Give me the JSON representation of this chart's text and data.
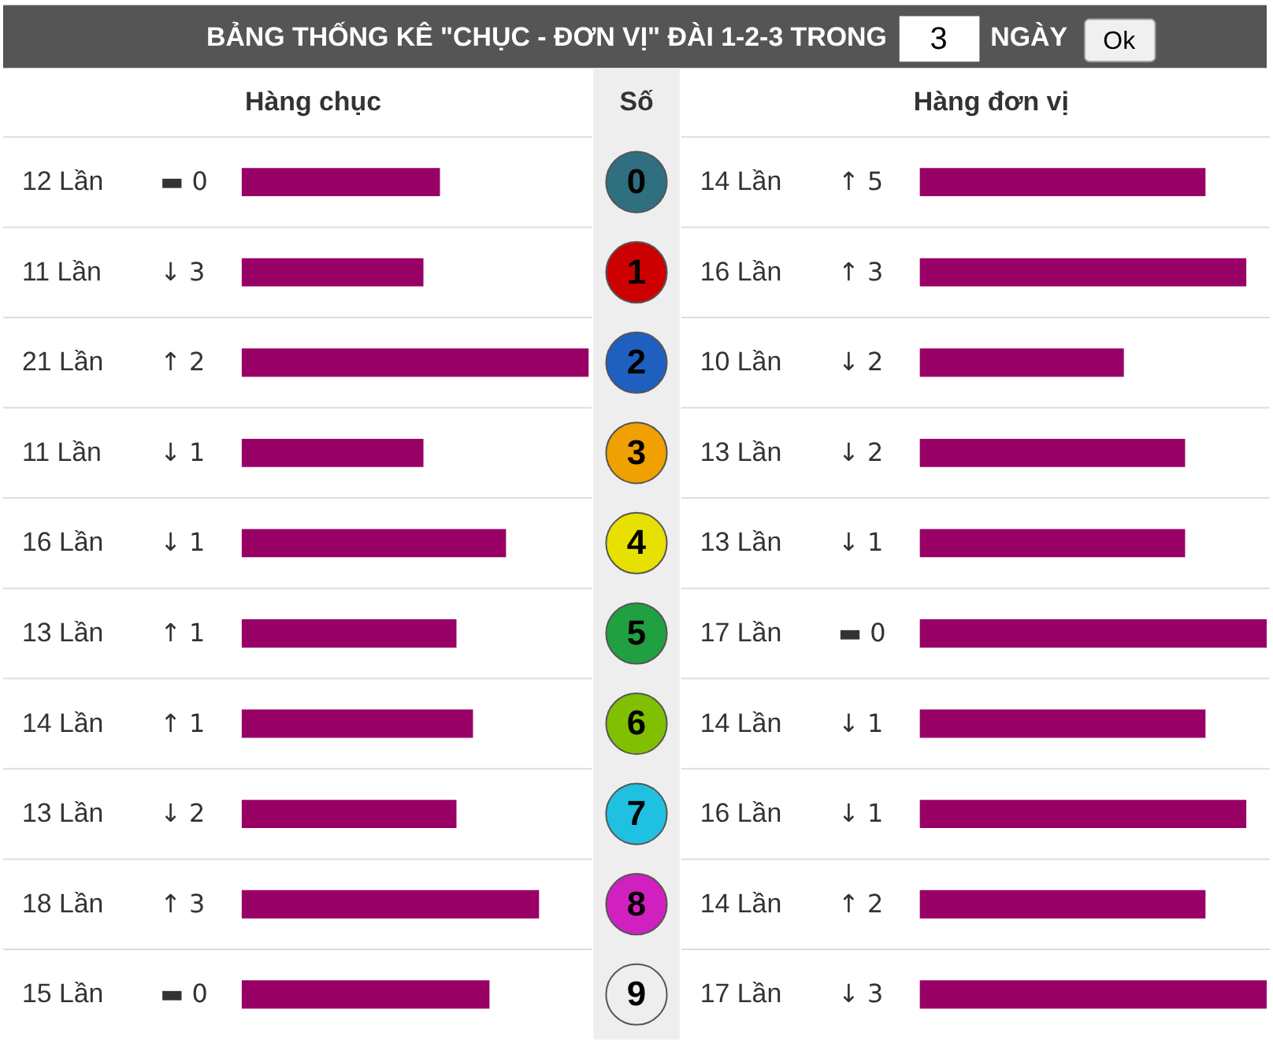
{
  "chart_data": [
    {
      "type": "bar",
      "orientation": "horizontal",
      "title": "BẢNG THỐNG KÊ \"CHỤC - ĐƠN VỊ\" ĐÀI 1-2-3 TRONG",
      "xlabel": "Hàng chục",
      "ylabel": "Số",
      "grid": "y",
      "categories": [
        "0",
        "1",
        "2",
        "3",
        "4",
        "5",
        "6",
        "7",
        "8",
        "9"
      ],
      "values": [
        12,
        11,
        21,
        11,
        16,
        13,
        14,
        13,
        18,
        15
      ],
      "color": "#990066",
      "value_labels": [
        "12 Lần",
        "11 Lần",
        "21 Lần",
        "11 Lần",
        "16 Lần",
        "13 Lần",
        "14 Lần",
        "13 Lần",
        "18 Lần",
        "15 Lần"
      ],
      "annotations": [
        "3",
        "NGÀY",
        "Ok",
        "▬ 0",
        "↓ 3",
        "↑ 2",
        "↓ 1",
        "↓ 1",
        "↑ 1",
        "↑ 1",
        "↓ 2",
        "↑ 3",
        "▬ 0"
      ]
    },
    {
      "type": "bar",
      "orientation": "horizontal",
      "xlabel": "Hàng đơn vị",
      "grid": "y",
      "tick_labels": false,
      "categories": [
        "0",
        "1",
        "2",
        "3",
        "4",
        "5",
        "6",
        "7",
        "8",
        "9"
      ],
      "values": [
        14,
        16,
        10,
        13,
        13,
        17,
        14,
        16,
        14,
        17
      ],
      "color": "#990066",
      "value_labels": [
        "14 Lần",
        "16 Lần",
        "10 Lần",
        "13 Lần",
        "13 Lần",
        "17 Lần",
        "14 Lần",
        "16 Lần",
        "14 Lần",
        "17 Lần"
      ],
      "annotations": [
        "↑ 5",
        "↑ 3",
        "↓ 2",
        "↓ 2",
        "↓ 1",
        "▬ 0",
        "↓ 1",
        "↓ 1",
        "↑ 2",
        "↓ 3"
      ]
    }
  ]
}
